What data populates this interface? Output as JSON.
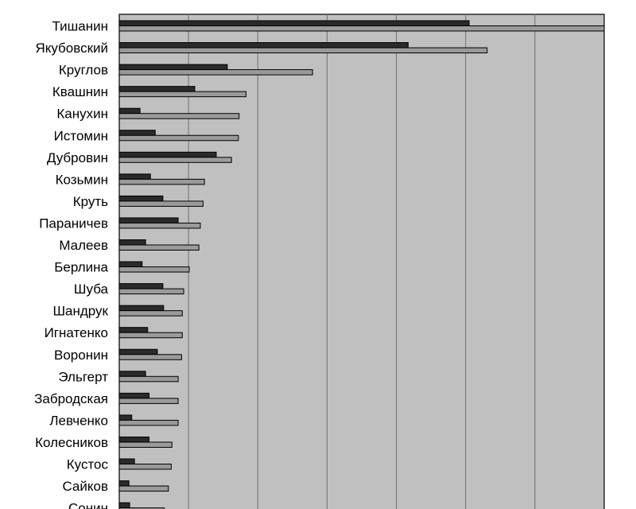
{
  "chart_data": {
    "type": "bar",
    "orientation": "horizontal",
    "categories": [
      "Тишанин",
      "Якубовский",
      "Круглов",
      "Квашнин",
      "Канухин",
      "Истомин",
      "Дубровин",
      "Козьмин",
      "Круть",
      "Параничев",
      "Малеев",
      "Берлина",
      "Шуба",
      "Шандрук",
      "Игнатенко",
      "Воронин",
      "Эльгерт",
      "Забродская",
      "Левченко",
      "Колесников",
      "Кустос",
      "Сайков",
      "Сонин"
    ],
    "series": [
      {
        "color": "#2a2a2a",
        "values": [
          5.05,
          4.17,
          1.56,
          1.09,
          0.3,
          0.52,
          1.4,
          0.45,
          0.63,
          0.85,
          0.38,
          0.33,
          0.63,
          0.64,
          0.41,
          0.55,
          0.38,
          0.43,
          0.18,
          0.43,
          0.22,
          0.14,
          0.15
        ]
      },
      {
        "color": "#9a9a9a",
        "values": [
          7.0,
          5.31,
          2.79,
          1.83,
          1.73,
          1.72,
          1.62,
          1.23,
          1.21,
          1.17,
          1.15,
          1.01,
          0.93,
          0.91,
          0.91,
          0.9,
          0.85,
          0.85,
          0.85,
          0.76,
          0.75,
          0.71,
          0.65
        ]
      }
    ],
    "xlim": [
      0,
      7
    ],
    "grid": true,
    "plot_background": "#c0c0c0"
  }
}
